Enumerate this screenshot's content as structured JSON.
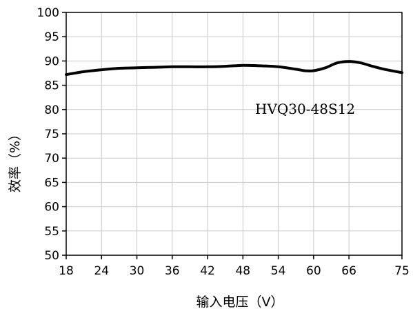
{
  "chart_data": {
    "type": "line",
    "title": "",
    "xlabel": "输入电压（V）",
    "ylabel": "效率（%）",
    "xlim": [
      18,
      75
    ],
    "ylim": [
      50,
      100
    ],
    "x_ticks": [
      18,
      24,
      30,
      36,
      42,
      48,
      54,
      60,
      66,
      75
    ],
    "y_ticks": [
      50,
      55,
      60,
      65,
      70,
      75,
      80,
      85,
      90,
      95,
      100
    ],
    "grid": true,
    "annotation": "HVQ30-48S12",
    "series": [
      {
        "color": "#000000",
        "x": [
          18,
          21,
          24,
          27,
          30,
          33,
          36,
          39,
          42,
          45,
          48,
          51,
          54,
          57,
          58.5,
          60,
          62,
          64,
          66,
          68,
          70,
          72,
          75
        ],
        "y": [
          87.2,
          87.8,
          88.2,
          88.5,
          88.6,
          88.7,
          88.8,
          88.8,
          88.8,
          88.9,
          89.1,
          89.0,
          88.8,
          88.3,
          88.0,
          88.0,
          88.6,
          89.6,
          89.9,
          89.6,
          88.9,
          88.3,
          87.6
        ]
      }
    ]
  }
}
